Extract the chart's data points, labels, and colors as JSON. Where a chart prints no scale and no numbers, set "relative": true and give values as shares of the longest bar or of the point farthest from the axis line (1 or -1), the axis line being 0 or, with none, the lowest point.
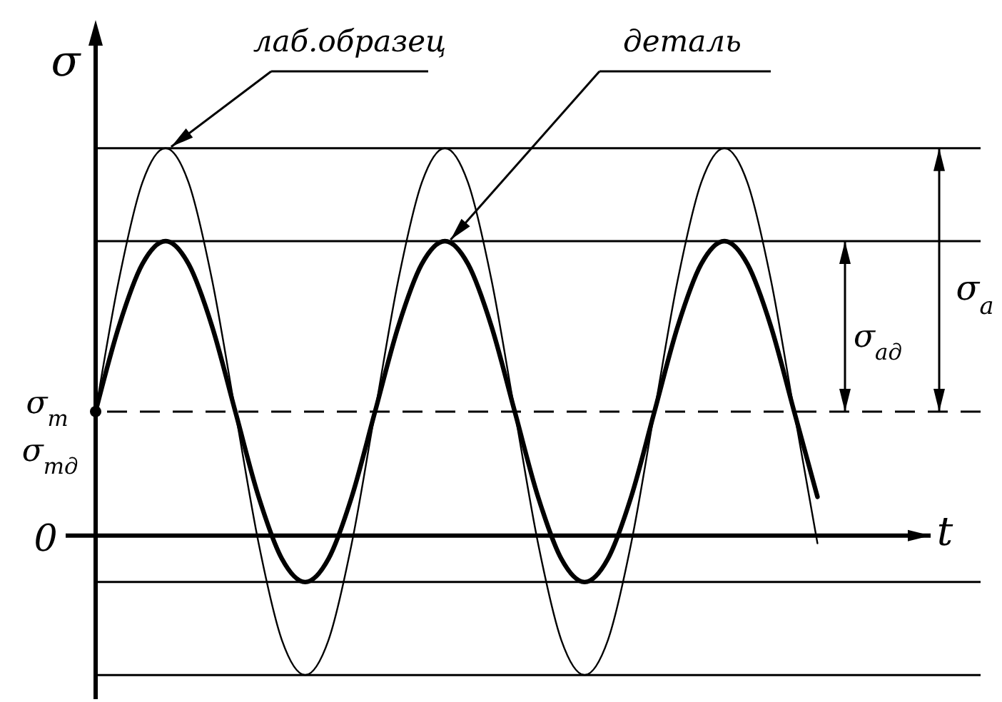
{
  "chart_data": {
    "type": "line",
    "relative": true,
    "xlabel": "t",
    "ylabel": "σ",
    "categories": [
      null,
      null,
      null,
      null,
      null,
      null,
      null,
      null,
      null,
      null,
      null,
      null,
      null,
      null,
      null,
      null,
      null,
      null,
      null,
      null,
      null,
      null,
      null,
      null,
      null,
      null,
      null,
      null,
      null,
      null,
      null,
      null
    ],
    "series": [
      {
        "name": "лаб.образец",
        "color": "#000000",
        "values": [
          0.32,
          0.66,
          0.91,
          1.0,
          0.91,
          0.66,
          0.32,
          -0.02,
          -0.27,
          -0.36,
          -0.27,
          -0.02,
          0.32,
          0.66,
          0.91,
          1.0,
          0.91,
          0.66,
          0.32,
          -0.02,
          -0.27,
          -0.36,
          -0.27,
          -0.02,
          0.32,
          0.66,
          0.91,
          1.0,
          0.91,
          0.66,
          0.32,
          -0.02
        ]
      },
      {
        "name": "деталь",
        "color": "#000000",
        "values": [
          0.32,
          0.54,
          0.7,
          0.76,
          0.7,
          0.54,
          0.32,
          0.1,
          -0.06,
          -0.12,
          -0.06,
          0.1,
          0.32,
          0.54,
          0.7,
          0.76,
          0.7,
          0.54,
          0.32,
          0.1,
          -0.06,
          -0.12,
          -0.06,
          0.1,
          0.32,
          0.54,
          0.7,
          0.76,
          0.7,
          0.54,
          0.32,
          0.1
        ]
      }
    ],
    "ref_lines": [
      {
        "axis": "y",
        "value": 1.0,
        "color": "#000000",
        "line_style": "solid"
      },
      {
        "axis": "y",
        "value": 0.76,
        "color": "#000000",
        "line_style": "solid"
      },
      {
        "axis": "y",
        "value": 0.32,
        "label": "σ$_{m}$",
        "color": "#000000",
        "line_style": "dashed"
      },
      {
        "axis": "y",
        "value": -0.12,
        "color": "#000000",
        "line_style": "solid"
      },
      {
        "axis": "y",
        "value": -0.36,
        "color": "#000000",
        "line_style": "solid"
      }
    ],
    "annotations": [
      "σ$_{mд}$",
      "0",
      "σ$_{a}$",
      "σ$_{aд}$"
    ]
  }
}
